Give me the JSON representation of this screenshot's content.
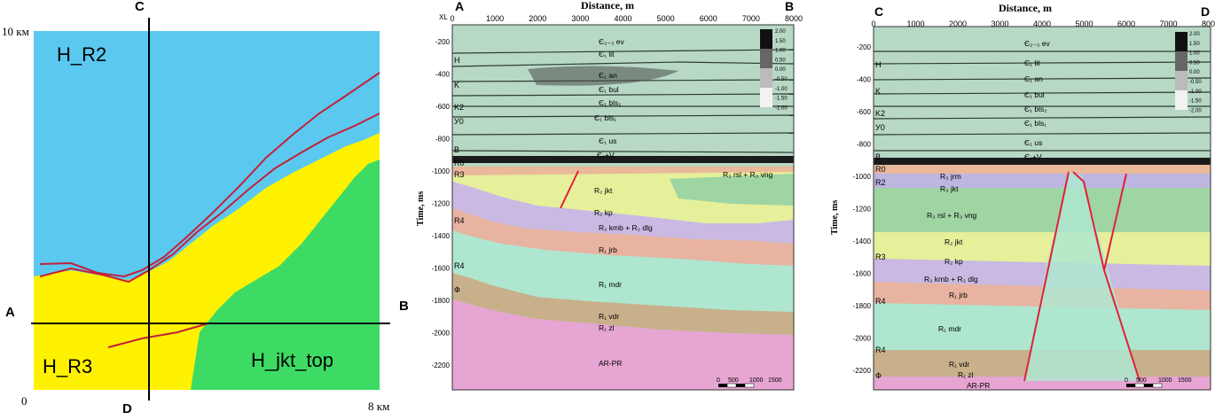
{
  "map": {
    "corner_top": "10 км",
    "corner_bottom_left": "0",
    "corner_bottom_right": "8 км",
    "point_c": "C",
    "point_d": "D",
    "point_a": "A",
    "point_b": "B",
    "label_r2": "H_R2",
    "label_r3": "H_R3",
    "label_jkt": "H_jkt_top",
    "colors": {
      "r2": "#5bc8f0",
      "r3": "#fff200",
      "jkt": "#3ddb63",
      "trace": "#c4203a"
    }
  },
  "section_ab": {
    "left_end": "A",
    "right_end": "B",
    "xl_label": "XL",
    "x_title": "Distance, m",
    "y_title": "Time, ms",
    "x_ticks": [
      "0",
      "1000",
      "2000",
      "3000",
      "4000",
      "5000",
      "6000",
      "7000",
      "8000"
    ],
    "y_ticks": [
      "-200",
      "-400",
      "-600",
      "-800",
      "-1000",
      "-1200",
      "-1400",
      "-1600",
      "-1800",
      "-2000",
      "-2200"
    ],
    "colorbar_ticks": [
      "2.00",
      "1.50",
      "1.00",
      "0.50",
      "0.00",
      "-0.50",
      "-1.00",
      "-1.50",
      "-2.00"
    ],
    "scale_bar": [
      "0",
      "500",
      "1000",
      "1500"
    ],
    "horizon_marks": [
      "H",
      "K",
      "K2",
      "У0",
      "B",
      "R0",
      "R3",
      "R4",
      "R4",
      "Ф"
    ],
    "units": [
      "Є₂₋₃ ev",
      "Є₁ lit",
      "Є₁ an",
      "Є₁ bul",
      "Є₁ bls₂",
      "Є₁ bls₁",
      "Є₁ us",
      "Є₁+V",
      "R₃ rsl + R₃ vng",
      "R₂ jkt",
      "R₂ kp",
      "R₂ kmb + R₂ dlg",
      "R₁ jrb",
      "R₁ mdr",
      "R₁ vdr",
      "R₁ zl",
      "AR-PR"
    ]
  },
  "section_cd": {
    "left_end": "C",
    "right_end": "D",
    "x_title": "Distance, m",
    "y_title": "Time, ms",
    "x_ticks": [
      "0",
      "1000",
      "2000",
      "3000",
      "4000",
      "5000",
      "6000",
      "7000",
      "8000"
    ],
    "y_ticks": [
      "-200",
      "-400",
      "-600",
      "-800",
      "-1000",
      "-1200",
      "-1400",
      "-1600",
      "-1800",
      "-2000",
      "-2200"
    ],
    "colorbar_ticks": [
      "2.00",
      "1.50",
      "1.00",
      "0.50",
      "0.00",
      "-0.50",
      "-1.00",
      "-1.50",
      "-2.00"
    ],
    "scale_bar": [
      "0",
      "500",
      "1000",
      "1500"
    ],
    "horizon_marks": [
      "H",
      "K",
      "K2",
      "У0",
      "B",
      "R0",
      "R2",
      "R3",
      "R4",
      "R4",
      "Ф"
    ],
    "units": [
      "Є₂₋₃ ev",
      "Є₁ lit",
      "Є₁ an",
      "Є₁ bul",
      "Є₁ bls₂",
      "Є₁ bls₁",
      "Є₁ us",
      "Є₁+V",
      "R₃ jrm",
      "R₃ jkt",
      "R₃ rsl + R₃ vng",
      "R₂ jkt",
      "R₂ kp",
      "R₂ kmb + R₂ dlg",
      "R₁ jrb",
      "R₁ mdr",
      "R₁ vdr",
      "R₁ zl",
      "AR-PR"
    ]
  }
}
